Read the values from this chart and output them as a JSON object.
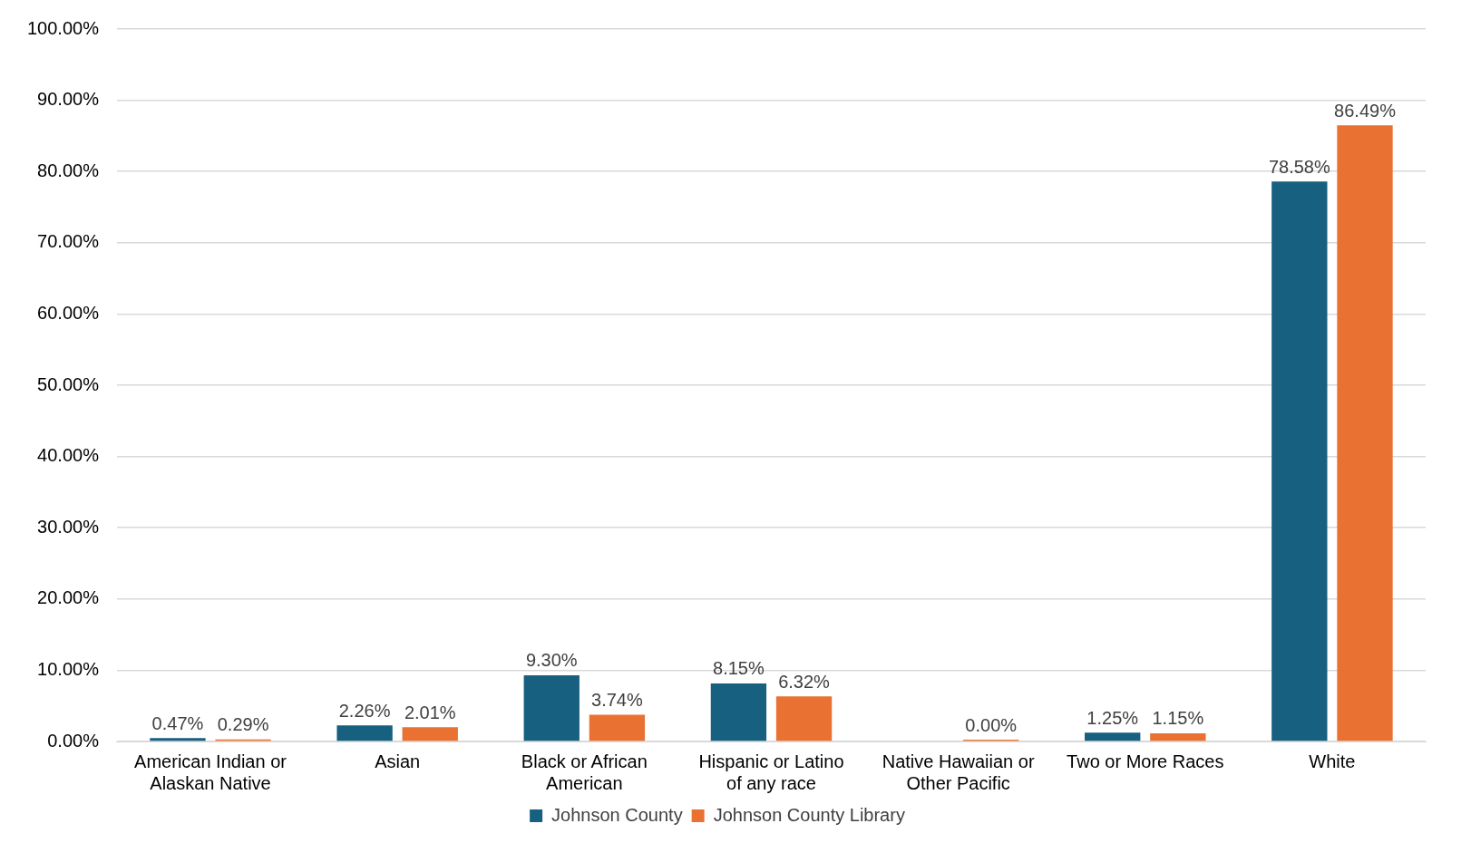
{
  "chart_data": {
    "type": "bar",
    "categories": [
      "American Indian or Alaskan Native",
      "Asian",
      "Black or African American",
      "Hispanic or Latino of any race",
      "Native Hawaiian or Other Pacific",
      "Two or More Races",
      "White"
    ],
    "series": [
      {
        "name": "Johnson County",
        "color": "#17607f",
        "values": [
          0.47,
          2.26,
          9.3,
          8.15,
          null,
          1.25,
          78.58
        ],
        "value_labels": [
          "0.47%",
          "2.26%",
          "9.30%",
          "8.15%",
          null,
          "1.25%",
          "78.58%"
        ]
      },
      {
        "name": "Johnson County Library",
        "color": "#e97132",
        "values": [
          0.29,
          2.01,
          3.74,
          6.32,
          0,
          1.15,
          86.49
        ],
        "value_labels": [
          "0.29%",
          "2.01%",
          "3.74%",
          "6.32%",
          "0.00%",
          "1.15%",
          "86.49%"
        ]
      }
    ],
    "ylim": [
      0,
      100
    ],
    "yticks": [
      {
        "value": 0,
        "label": "0.00%"
      },
      {
        "value": 10,
        "label": "10.00%"
      },
      {
        "value": 20,
        "label": "20.00%"
      },
      {
        "value": 30,
        "label": "30.00%"
      },
      {
        "value": 40,
        "label": "40.00%"
      },
      {
        "value": 50,
        "label": "50.00%"
      },
      {
        "value": 60,
        "label": "60.00%"
      },
      {
        "value": 70,
        "label": "70.00%"
      },
      {
        "value": 80,
        "label": "80.00%"
      },
      {
        "value": 90,
        "label": "90.00%"
      },
      {
        "value": 100,
        "label": "100.00%"
      }
    ],
    "grid": "y",
    "legend": "bottom"
  }
}
